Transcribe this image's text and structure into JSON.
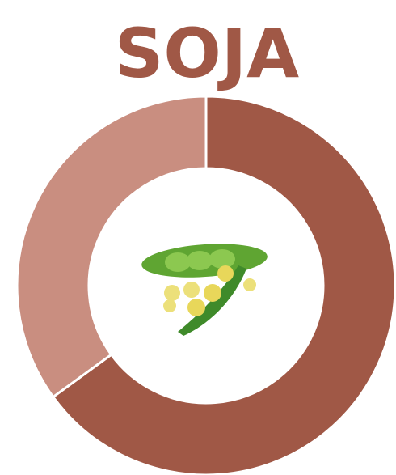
{
  "chart_data": {
    "type": "donut",
    "title": "SOJA",
    "values": [
      65,
      35
    ],
    "colors": [
      "#a05846",
      "#c98e80"
    ]
  }
}
